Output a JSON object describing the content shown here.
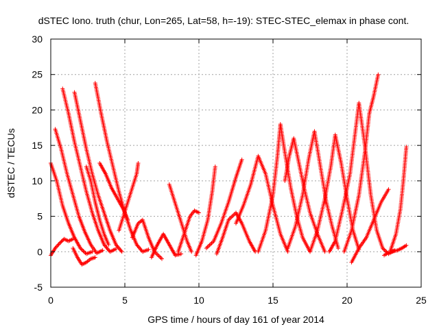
{
  "chart_data": {
    "type": "scatter",
    "title": "dSTEC Iono. truth (chur, Lon=265, Lat=58, h=-19): STEC-STEC_elemax in phase cont.",
    "xlabel": "GPS time / hours of day 161 of year 2014",
    "ylabel": "dSTEC  / TECUs",
    "xlim": [
      0,
      25
    ],
    "ylim": [
      -5,
      30
    ],
    "x_ticks": [
      "0",
      "5",
      "10",
      "15",
      "20",
      "25"
    ],
    "y_ticks": [
      "-5",
      "0",
      "5",
      "10",
      "15",
      "20",
      "25",
      "30"
    ],
    "grid": true,
    "marker": "plus",
    "color": "#ff0000",
    "series": [
      {
        "points": [
          [
            0.0,
            12.5
          ],
          [
            0.4,
            10.0
          ],
          [
            0.8,
            6.5
          ],
          [
            1.2,
            4.0
          ],
          [
            1.6,
            2.0
          ],
          [
            2.0,
            0.5
          ],
          [
            2.4,
            -0.3
          ],
          [
            2.8,
            0.0
          ]
        ]
      },
      {
        "points": [
          [
            0.3,
            17.3
          ],
          [
            0.7,
            14.5
          ],
          [
            1.1,
            11.0
          ],
          [
            1.5,
            8.0
          ],
          [
            1.9,
            5.0
          ],
          [
            2.3,
            2.8
          ],
          [
            2.7,
            1.0
          ],
          [
            3.1,
            -0.2
          ],
          [
            3.5,
            0.2
          ]
        ]
      },
      {
        "points": [
          [
            0.8,
            23.0
          ],
          [
            1.2,
            19.5
          ],
          [
            1.6,
            15.5
          ],
          [
            2.0,
            12.0
          ],
          [
            2.4,
            8.5
          ],
          [
            2.8,
            5.5
          ],
          [
            3.2,
            3.0
          ],
          [
            3.6,
            1.0
          ],
          [
            4.0,
            0.0
          ],
          [
            4.4,
            0.4
          ]
        ]
      },
      {
        "points": [
          [
            1.6,
            22.5
          ],
          [
            2.0,
            18.5
          ],
          [
            2.4,
            14.5
          ],
          [
            2.8,
            11.0
          ],
          [
            3.2,
            8.0
          ],
          [
            3.6,
            5.5
          ],
          [
            4.0,
            3.0
          ],
          [
            4.4,
            1.0
          ],
          [
            4.8,
            0.0
          ]
        ]
      },
      {
        "points": [
          [
            3.0,
            23.8
          ],
          [
            3.4,
            19.5
          ],
          [
            3.8,
            15.5
          ],
          [
            4.2,
            12.0
          ],
          [
            4.6,
            8.5
          ],
          [
            5.0,
            5.5
          ],
          [
            5.4,
            3.0
          ],
          [
            5.8,
            1.0
          ],
          [
            6.2,
            0.0
          ],
          [
            6.6,
            0.3
          ]
        ]
      },
      {
        "points": [
          [
            0.0,
            -0.5
          ],
          [
            0.3,
            0.5
          ],
          [
            0.6,
            1.2
          ],
          [
            0.9,
            1.8
          ],
          [
            1.2,
            1.5
          ],
          [
            1.5,
            1.8
          ]
        ]
      },
      {
        "points": [
          [
            1.5,
            0.5
          ],
          [
            1.8,
            -0.8
          ],
          [
            2.1,
            -1.8
          ],
          [
            2.4,
            -1.5
          ],
          [
            2.7,
            -1.0
          ],
          [
            3.0,
            -0.8
          ]
        ]
      },
      {
        "points": [
          [
            2.4,
            12.0
          ],
          [
            2.7,
            10.0
          ],
          [
            3.0,
            7.0
          ],
          [
            3.3,
            4.5
          ],
          [
            3.6,
            2.5
          ],
          [
            3.9,
            1.0
          ]
        ]
      },
      {
        "points": [
          [
            3.3,
            12.5
          ],
          [
            3.7,
            11.0
          ],
          [
            4.1,
            9.0
          ],
          [
            4.5,
            7.5
          ],
          [
            4.9,
            6.0
          ],
          [
            5.2,
            4.5
          ]
        ]
      },
      {
        "points": [
          [
            4.6,
            3.0
          ],
          [
            4.9,
            5.0
          ],
          [
            5.2,
            7.0
          ],
          [
            5.5,
            9.0
          ],
          [
            5.8,
            11.0
          ],
          [
            5.9,
            12.5
          ]
        ]
      },
      {
        "points": [
          [
            5.5,
            2.0
          ],
          [
            5.9,
            4.0
          ],
          [
            6.2,
            4.5
          ],
          [
            6.6,
            2.0
          ],
          [
            7.0,
            0.0
          ],
          [
            7.5,
            -1.0
          ]
        ]
      },
      {
        "points": [
          [
            6.8,
            -0.8
          ],
          [
            7.2,
            1.0
          ],
          [
            7.6,
            2.5
          ],
          [
            8.0,
            1.0
          ],
          [
            8.4,
            -0.5
          ],
          [
            8.8,
            -0.3
          ]
        ]
      },
      {
        "points": [
          [
            8.0,
            9.5
          ],
          [
            8.3,
            7.5
          ],
          [
            8.6,
            5.5
          ],
          [
            8.9,
            3.5
          ],
          [
            9.2,
            1.5
          ],
          [
            9.5,
            0.0
          ]
        ]
      },
      {
        "points": [
          [
            8.6,
            0.0
          ],
          [
            9.0,
            2.5
          ],
          [
            9.4,
            5.0
          ],
          [
            9.7,
            5.8
          ],
          [
            10.0,
            5.5
          ]
        ]
      },
      {
        "points": [
          [
            9.8,
            -0.5
          ],
          [
            10.2,
            1.5
          ],
          [
            10.6,
            4.5
          ],
          [
            10.9,
            8.5
          ],
          [
            11.1,
            12.0
          ]
        ]
      },
      {
        "points": [
          [
            10.5,
            0.5
          ],
          [
            11.0,
            1.5
          ],
          [
            11.5,
            4.0
          ],
          [
            12.0,
            7.0
          ],
          [
            12.5,
            10.5
          ],
          [
            12.9,
            13.0
          ]
        ]
      },
      {
        "points": [
          [
            11.2,
            -0.3
          ],
          [
            11.6,
            2.0
          ],
          [
            12.0,
            4.5
          ],
          [
            12.5,
            5.5
          ],
          [
            12.9,
            4.0
          ],
          [
            13.4,
            1.5
          ],
          [
            13.8,
            0.0
          ]
        ]
      },
      {
        "points": [
          [
            12.5,
            4.0
          ],
          [
            13.0,
            6.5
          ],
          [
            13.5,
            9.5
          ],
          [
            14.0,
            13.5
          ],
          [
            14.5,
            11.0
          ],
          [
            15.0,
            6.5
          ],
          [
            15.5,
            2.5
          ],
          [
            16.0,
            0.0
          ]
        ]
      },
      {
        "points": [
          [
            14.0,
            0.0
          ],
          [
            14.5,
            3.0
          ],
          [
            15.0,
            8.0
          ],
          [
            15.3,
            13.5
          ],
          [
            15.5,
            18.0
          ],
          [
            15.8,
            14.0
          ],
          [
            16.2,
            9.0
          ],
          [
            16.6,
            5.0
          ],
          [
            17.0,
            2.0
          ],
          [
            17.5,
            0.0
          ]
        ]
      },
      {
        "points": [
          [
            15.8,
            10.0
          ],
          [
            16.1,
            13.5
          ],
          [
            16.4,
            16.0
          ],
          [
            16.7,
            13.0
          ],
          [
            17.1,
            9.0
          ],
          [
            17.5,
            5.5
          ],
          [
            18.0,
            2.5
          ],
          [
            18.5,
            0.0
          ]
        ]
      },
      {
        "points": [
          [
            16.0,
            0.5
          ],
          [
            16.5,
            3.5
          ],
          [
            17.0,
            8.0
          ],
          [
            17.4,
            13.0
          ],
          [
            17.8,
            17.0
          ],
          [
            18.2,
            12.0
          ],
          [
            18.6,
            7.0
          ],
          [
            19.0,
            3.5
          ],
          [
            19.4,
            0.5
          ]
        ]
      },
      {
        "points": [
          [
            17.5,
            0.0
          ],
          [
            18.0,
            3.0
          ],
          [
            18.5,
            7.5
          ],
          [
            18.9,
            12.0
          ],
          [
            19.2,
            16.5
          ],
          [
            19.6,
            12.5
          ],
          [
            20.0,
            7.5
          ],
          [
            20.4,
            3.0
          ],
          [
            20.8,
            0.3
          ]
        ]
      },
      {
        "points": [
          [
            18.8,
            0.0
          ],
          [
            19.2,
            1.5
          ],
          [
            19.7,
            6.0
          ],
          [
            20.2,
            11.0
          ],
          [
            20.5,
            16.0
          ],
          [
            20.8,
            21.0
          ],
          [
            21.2,
            15.0
          ],
          [
            21.6,
            8.0
          ],
          [
            22.0,
            3.0
          ],
          [
            22.4,
            0.5
          ],
          [
            22.8,
            -0.3
          ],
          [
            23.2,
            0.2
          ]
        ]
      },
      {
        "points": [
          [
            19.8,
            0.0
          ],
          [
            20.3,
            3.0
          ],
          [
            20.8,
            8.0
          ],
          [
            21.2,
            14.0
          ],
          [
            21.5,
            19.5
          ],
          [
            21.8,
            22.0
          ],
          [
            22.1,
            25.0
          ]
        ]
      },
      {
        "points": [
          [
            20.3,
            -1.5
          ],
          [
            20.8,
            0.5
          ],
          [
            21.3,
            2.0
          ],
          [
            21.8,
            4.5
          ],
          [
            22.3,
            7.0
          ],
          [
            22.8,
            8.8
          ]
        ]
      },
      {
        "points": [
          [
            22.5,
            -0.5
          ],
          [
            22.9,
            0.0
          ],
          [
            23.3,
            2.5
          ],
          [
            23.6,
            6.0
          ],
          [
            23.8,
            10.0
          ],
          [
            24.0,
            14.8
          ]
        ]
      },
      {
        "points": [
          [
            23.0,
            0.0
          ],
          [
            23.4,
            0.2
          ],
          [
            23.7,
            0.5
          ],
          [
            24.0,
            0.9
          ]
        ]
      }
    ]
  }
}
